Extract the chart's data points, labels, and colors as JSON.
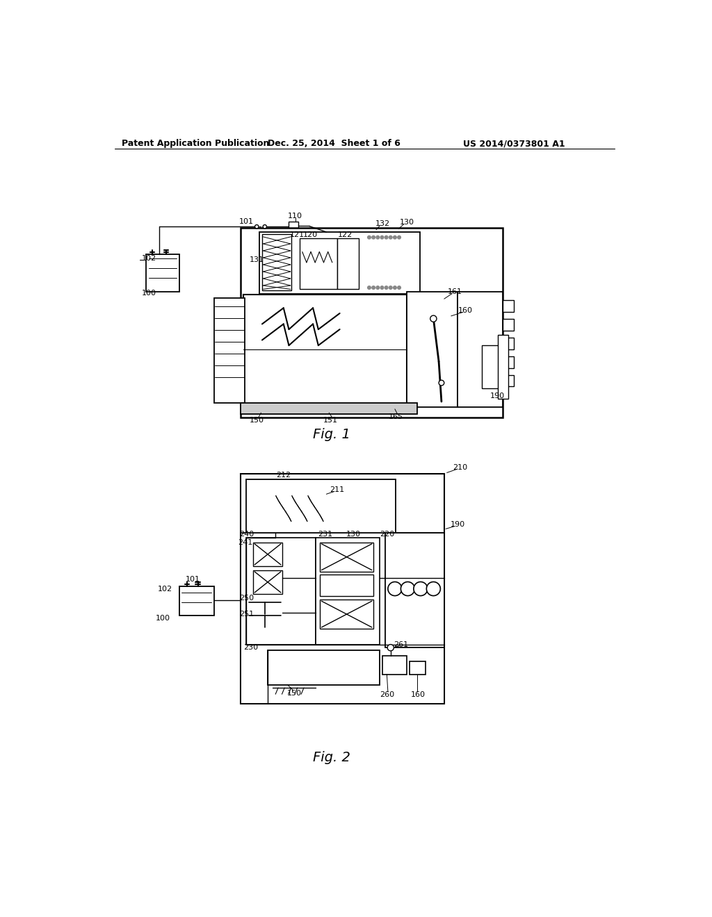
{
  "background_color": "#ffffff",
  "header_left": "Patent Application Publication",
  "header_center": "Dec. 25, 2014  Sheet 1 of 6",
  "header_right": "US 2014/0373801 A1",
  "fig1_caption": "Fig. 1",
  "fig2_caption": "Fig. 2",
  "header_fontsize": 9,
  "caption_fontsize": 14,
  "label_fontsize": 8,
  "line_color": "#000000",
  "text_color": "#000000"
}
